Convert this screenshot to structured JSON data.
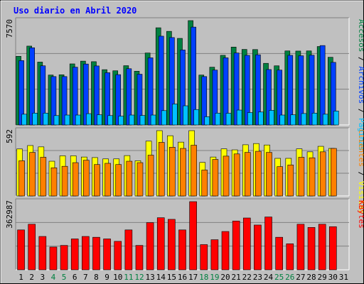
{
  "title": "Uso diario en Abril 2020",
  "colors": {
    "background": "#c0c0c0",
    "frame_dark": "#808080",
    "title": "#0000ff",
    "accesos": "#008040",
    "archivos": "#0040ff",
    "paginas": "#00c0ff",
    "visitas": "#ffff00",
    "clientes": "#ff8000",
    "kbytes": "#ff0000",
    "weekend_label": "#008040",
    "weekday_label": "#000000",
    "separator": "#000000"
  },
  "chart_data": [
    {
      "type": "bar",
      "name": "accesses-panel",
      "categories": [
        "1",
        "2",
        "3",
        "4",
        "5",
        "6",
        "7",
        "8",
        "9",
        "10",
        "11",
        "12",
        "13",
        "14",
        "15",
        "16",
        "17",
        "18",
        "19",
        "20",
        "21",
        "22",
        "23",
        "24",
        "25",
        "26",
        "27",
        "28",
        "29",
        "30",
        "31"
      ],
      "weekend_days": [
        "4",
        "5",
        "11",
        "12",
        "18",
        "19",
        "25",
        "26"
      ],
      "ylabel_top": "7570",
      "ylabel_parts": [
        {
          "text": "Accesos",
          "color": "#008040"
        },
        {
          "text": " / ",
          "color": "#000000"
        },
        {
          "text": "Archivos",
          "color": "#0040ff"
        },
        {
          "text": " / ",
          "color": "#000000"
        },
        {
          "text": "Páginas",
          "color": "#00c0ff"
        }
      ],
      "ylim": [
        0,
        7570
      ],
      "series": [
        {
          "name": "Accesos",
          "color": "#008040",
          "values": [
            4980,
            5720,
            4560,
            3620,
            3640,
            4430,
            4630,
            4590,
            4010,
            3930,
            4300,
            3900,
            5220,
            7050,
            6790,
            6280,
            7570,
            3620,
            4190,
            5050,
            5650,
            5480,
            5470,
            4470,
            4290,
            5370,
            5360,
            5370,
            5690,
            4910,
            0
          ]
        },
        {
          "name": "Archivos",
          "color": "#0040ff",
          "values": [
            4670,
            5600,
            4290,
            3510,
            3510,
            4190,
            4420,
            4280,
            3790,
            3650,
            4080,
            3680,
            4870,
            6440,
            6340,
            5440,
            7100,
            3510,
            3980,
            4870,
            5220,
            5050,
            5090,
            4020,
            3980,
            5050,
            5020,
            5060,
            5760,
            4540,
            0
          ]
        },
        {
          "name": "Páginas",
          "color": "#00c0ff",
          "values": [
            780,
            860,
            860,
            680,
            720,
            720,
            820,
            740,
            680,
            640,
            720,
            690,
            720,
            1040,
            1520,
            1390,
            1120,
            600,
            860,
            850,
            1080,
            900,
            940,
            1060,
            720,
            740,
            830,
            860,
            780,
            1010,
            0
          ]
        }
      ]
    },
    {
      "type": "bar",
      "name": "visits-panel",
      "categories": [
        "1",
        "2",
        "3",
        "4",
        "5",
        "6",
        "7",
        "8",
        "9",
        "10",
        "11",
        "12",
        "13",
        "14",
        "15",
        "16",
        "17",
        "18",
        "19",
        "20",
        "21",
        "22",
        "23",
        "24",
        "25",
        "26",
        "27",
        "28",
        "29",
        "30",
        "31"
      ],
      "ylabel_top": "592",
      "ylabel_parts": [
        {
          "text": "Clientes",
          "color": "#ff8000"
        },
        {
          "text": " / ",
          "color": "#000000"
        },
        {
          "text": "Visitas",
          "color": "#ffff00"
        }
      ],
      "ylim": [
        0,
        592
      ],
      "series": [
        {
          "name": "Visitas",
          "color": "#ffff00",
          "values": [
            426,
            457,
            445,
            315,
            364,
            364,
            353,
            348,
            336,
            336,
            366,
            319,
            497,
            592,
            546,
            488,
            592,
            304,
            353,
            427,
            418,
            464,
            475,
            462,
            341,
            341,
            427,
            400,
            450,
            431,
            0
          ]
        },
        {
          "name": "Clientes",
          "color": "#ff8000",
          "values": [
            319,
            395,
            351,
            255,
            269,
            302,
            324,
            285,
            296,
            285,
            315,
            302,
            370,
            486,
            442,
            431,
            460,
            235,
            331,
            361,
            381,
            395,
            405,
            395,
            266,
            281,
            351,
            346,
            400,
            431,
            0
          ]
        }
      ]
    },
    {
      "type": "bar",
      "name": "kbytes-panel",
      "categories": [
        "1",
        "2",
        "3",
        "4",
        "5",
        "6",
        "7",
        "8",
        "9",
        "10",
        "11",
        "12",
        "13",
        "14",
        "15",
        "16",
        "17",
        "18",
        "19",
        "20",
        "21",
        "22",
        "23",
        "24",
        "25",
        "26",
        "27",
        "28",
        "29",
        "30",
        "31"
      ],
      "ylabel_top": "362987",
      "ylabel_parts": [
        {
          "text": "KBytes",
          "color": "#ff0000"
        }
      ],
      "ylim": [
        0,
        362987
      ],
      "series": [
        {
          "name": "KBytes",
          "color": "#ff0000",
          "values": [
            212450,
            242730,
            177650,
            121270,
            129930,
            164560,
            177650,
            173320,
            164560,
            151530,
            212450,
            129930,
            251390,
            277410,
            268750,
            212450,
            362987,
            134250,
            160340,
            204040,
            259930,
            276020,
            238460,
            281410,
            173320,
            138560,
            242730,
            225680,
            242730,
            229690,
            0
          ]
        }
      ]
    }
  ]
}
